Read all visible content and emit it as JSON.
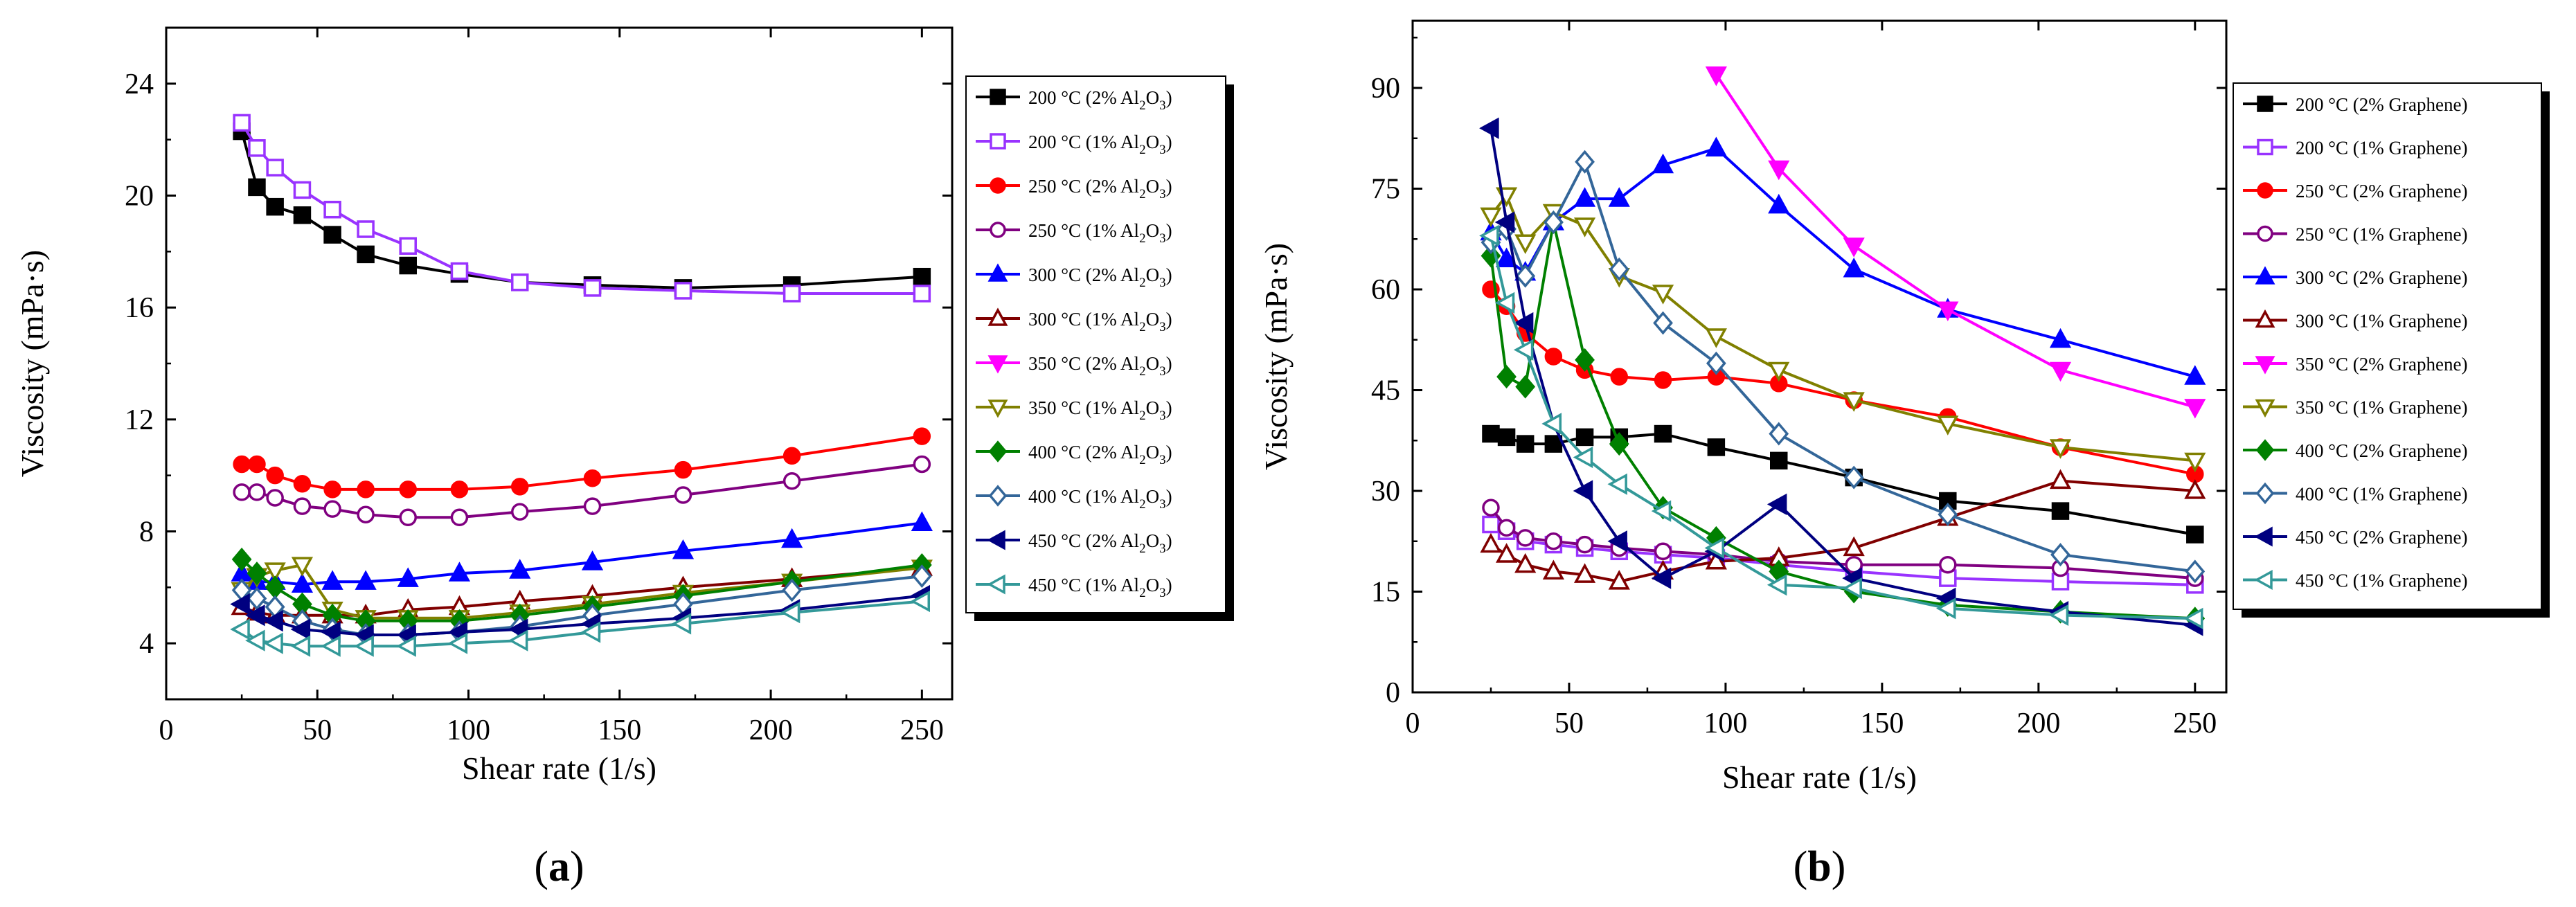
{
  "chart_data": [
    {
      "panel": "(a)",
      "panel_text": {
        "open": "(",
        "letter": "a",
        "close": ")"
      },
      "type": "line",
      "xlabel": "Shear rate (1/s)",
      "ylabel": "Viscosity (mPa·s)",
      "xlim": [
        0,
        260
      ],
      "ylim": [
        2,
        26
      ],
      "xticks": [
        0,
        50,
        100,
        150,
        200,
        250
      ],
      "yticks": [
        4,
        8,
        12,
        16,
        20,
        24
      ],
      "series": [
        {
          "name": "200 °C (2% Al2O3)",
          "label_main": "200 °C (2% Al",
          "label_sub": "2",
          "label_mid": "O",
          "label_sub2": "3",
          "label_end": ")",
          "color": "#000000",
          "marker": "square",
          "fill": true,
          "x": [
            25,
            30,
            36,
            45,
            55,
            66,
            80,
            97,
            117,
            141,
            171,
            207,
            250
          ],
          "y": [
            22.3,
            20.3,
            19.6,
            19.3,
            18.6,
            17.9,
            17.5,
            17.2,
            16.9,
            16.8,
            16.7,
            16.8,
            17.1
          ]
        },
        {
          "name": "200 °C (1% Al2O3)",
          "label_main": "200 °C (1% Al",
          "label_sub": "2",
          "label_mid": "O",
          "label_sub2": "3",
          "label_end": ")",
          "color": "#9933ff",
          "marker": "square",
          "fill": false,
          "x": [
            25,
            30,
            36,
            45,
            55,
            66,
            80,
            97,
            117,
            141,
            171,
            207,
            250
          ],
          "y": [
            22.6,
            21.7,
            21.0,
            20.2,
            19.5,
            18.8,
            18.2,
            17.3,
            16.9,
            16.7,
            16.6,
            16.5,
            16.5
          ]
        },
        {
          "name": "250 °C (2% Al2O3)",
          "label_main": "250 °C (2% Al",
          "label_sub": "2",
          "label_mid": "O",
          "label_sub2": "3",
          "label_end": ")",
          "color": "#ff0000",
          "marker": "circle",
          "fill": true,
          "x": [
            25,
            30,
            36,
            45,
            55,
            66,
            80,
            97,
            117,
            141,
            171,
            207,
            250
          ],
          "y": [
            10.4,
            10.4,
            10.0,
            9.7,
            9.5,
            9.5,
            9.5,
            9.5,
            9.6,
            9.9,
            10.2,
            10.7,
            11.4
          ]
        },
        {
          "name": "250 °C (1% Al2O3)",
          "label_main": "250 °C (1% Al",
          "label_sub": "2",
          "label_mid": "O",
          "label_sub2": "3",
          "label_end": ")",
          "color": "#800080",
          "marker": "circle",
          "fill": false,
          "x": [
            25,
            30,
            36,
            45,
            55,
            66,
            80,
            97,
            117,
            141,
            171,
            207,
            250
          ],
          "y": [
            9.4,
            9.4,
            9.2,
            8.9,
            8.8,
            8.6,
            8.5,
            8.5,
            8.7,
            8.9,
            9.3,
            9.8,
            10.4
          ]
        },
        {
          "name": "300 °C (2% Al2O3)",
          "label_main": "300 °C (2% Al",
          "label_sub": "2",
          "label_mid": "O",
          "label_sub2": "3",
          "label_end": ")",
          "color": "#0000ff",
          "marker": "triangle-up",
          "fill": true,
          "x": [
            25,
            30,
            36,
            45,
            55,
            66,
            80,
            97,
            117,
            141,
            171,
            207,
            250
          ],
          "y": [
            6.5,
            6.2,
            6.2,
            6.1,
            6.2,
            6.2,
            6.3,
            6.5,
            6.6,
            6.9,
            7.3,
            7.7,
            8.3
          ]
        },
        {
          "name": "300 °C (1% Al2O3)",
          "label_main": "300 °C (1% Al",
          "label_sub": "2",
          "label_mid": "O",
          "label_sub2": "3",
          "label_end": ")",
          "color": "#800000",
          "marker": "triangle-up",
          "fill": false,
          "x": [
            25,
            30,
            36,
            45,
            55,
            66,
            80,
            97,
            117,
            141,
            171,
            207,
            250
          ],
          "y": [
            5.3,
            5.1,
            5.0,
            5.0,
            5.0,
            5.0,
            5.2,
            5.3,
            5.5,
            5.7,
            6.0,
            6.3,
            6.7
          ]
        },
        {
          "name": "350 °C (2% Al2O3)",
          "label_main": "350 °C (2% Al",
          "label_sub": "2",
          "label_mid": "O",
          "label_sub2": "3",
          "label_end": ")",
          "color": "#ff00ff",
          "marker": "triangle-down",
          "fill": true,
          "x": [],
          "y": []
        },
        {
          "name": "350 °C (1% Al2O3)",
          "label_main": "350 °C (1% Al",
          "label_sub": "2",
          "label_mid": "O",
          "label_sub2": "3",
          "label_end": ")",
          "color": "#808000",
          "marker": "triangle-down",
          "fill": false,
          "x": [
            25,
            30,
            36,
            45,
            55,
            66,
            80,
            97,
            117,
            141,
            171,
            207,
            250
          ],
          "y": [
            5.9,
            6.4,
            6.6,
            6.8,
            5.2,
            4.9,
            4.9,
            4.9,
            5.1,
            5.4,
            5.8,
            6.2,
            6.7
          ]
        },
        {
          "name": "400 °C (2% Al2O3)",
          "label_main": "400 °C (2% Al",
          "label_sub": "2",
          "label_mid": "O",
          "label_sub2": "3",
          "label_end": ")",
          "color": "#008000",
          "marker": "diamond",
          "fill": true,
          "x": [
            25,
            30,
            36,
            45,
            55,
            66,
            80,
            97,
            117,
            141,
            171,
            207,
            250
          ],
          "y": [
            7.0,
            6.5,
            6.0,
            5.4,
            5.0,
            4.8,
            4.8,
            4.8,
            5.0,
            5.3,
            5.7,
            6.2,
            6.8
          ]
        },
        {
          "name": "400 °C (1% Al2O3)",
          "label_main": "400 °C (1% Al",
          "label_sub": "2",
          "label_mid": "O",
          "label_sub2": "3",
          "label_end": ")",
          "color": "#336699",
          "marker": "diamond",
          "fill": false,
          "x": [
            25,
            30,
            36,
            45,
            55,
            66,
            80,
            97,
            117,
            141,
            171,
            207,
            250
          ],
          "y": [
            5.9,
            5.6,
            5.3,
            4.8,
            4.5,
            4.3,
            4.3,
            4.4,
            4.6,
            5.0,
            5.4,
            5.9,
            6.4
          ]
        },
        {
          "name": "450 °C (2% Al2O3)",
          "label_main": "450 °C (2% Al",
          "label_sub": "2",
          "label_mid": "O",
          "label_sub2": "3",
          "label_end": ")",
          "color": "#000080",
          "marker": "triangle-left",
          "fill": true,
          "x": [
            25,
            30,
            36,
            45,
            55,
            66,
            80,
            97,
            117,
            141,
            171,
            207,
            250
          ],
          "y": [
            5.4,
            5.0,
            4.8,
            4.5,
            4.4,
            4.3,
            4.3,
            4.4,
            4.5,
            4.7,
            4.9,
            5.2,
            5.7
          ]
        },
        {
          "name": "450 °C (1% Al2O3)",
          "label_main": "450 °C (1% Al",
          "label_sub": "2",
          "label_mid": "O",
          "label_sub2": "3",
          "label_end": ")",
          "color": "#339999",
          "marker": "triangle-left",
          "fill": false,
          "x": [
            25,
            30,
            36,
            45,
            55,
            66,
            80,
            97,
            117,
            141,
            171,
            207,
            250
          ],
          "y": [
            4.5,
            4.1,
            4.0,
            3.9,
            3.9,
            3.9,
            3.9,
            4.0,
            4.1,
            4.4,
            4.7,
            5.1,
            5.5
          ]
        }
      ]
    },
    {
      "panel": "(b)",
      "panel_text": {
        "open": "(",
        "letter": "b",
        "close": ")"
      },
      "type": "line",
      "xlabel": "Shear rate (1/s)",
      "ylabel": "Viscosity (mPa·s)",
      "xlim": [
        0,
        260
      ],
      "ylim": [
        0,
        100
      ],
      "xticks": [
        0,
        50,
        100,
        150,
        200,
        250
      ],
      "yticks": [
        0,
        15,
        30,
        45,
        60,
        75,
        90
      ],
      "series": [
        {
          "name": "200 °C (2% Graphene)",
          "label_main": "200 °C (2% Graphene)",
          "color": "#000000",
          "marker": "square",
          "fill": true,
          "x": [
            25,
            30,
            36,
            45,
            55,
            66,
            80,
            97,
            117,
            141,
            171,
            207,
            250
          ],
          "y": [
            38.5,
            38,
            37,
            37,
            38,
            38,
            38.5,
            36.5,
            34.5,
            32,
            28.5,
            27,
            23.5
          ]
        },
        {
          "name": "200 °C (1% Graphene)",
          "label_main": "200 °C (1% Graphene)",
          "color": "#9933ff",
          "marker": "square",
          "fill": false,
          "x": [
            25,
            30,
            36,
            45,
            55,
            66,
            80,
            97,
            117,
            141,
            171,
            207,
            250
          ],
          "y": [
            25,
            24,
            22.5,
            22,
            21.5,
            21,
            20.5,
            20,
            19,
            18,
            17,
            16.5,
            16
          ]
        },
        {
          "name": "250 °C (2% Graphene)",
          "label_main": "250 °C (2% Graphene)",
          "color": "#ff0000",
          "marker": "circle",
          "fill": true,
          "x": [
            25,
            30,
            36,
            45,
            55,
            66,
            80,
            97,
            117,
            141,
            171,
            207,
            250
          ],
          "y": [
            60,
            57.5,
            53.5,
            50,
            48,
            47,
            46.5,
            47,
            46,
            43.5,
            41,
            36.5,
            32.5
          ]
        },
        {
          "name": "250 °C (1% Graphene)",
          "label_main": "250 °C (1% Graphene)",
          "color": "#800080",
          "marker": "circle",
          "fill": false,
          "x": [
            25,
            30,
            36,
            45,
            55,
            66,
            80,
            97,
            117,
            141,
            171,
            207,
            250
          ],
          "y": [
            27.5,
            24.5,
            23,
            22.5,
            22,
            21.5,
            21,
            20.5,
            19.5,
            19,
            19,
            18.5,
            17
          ]
        },
        {
          "name": "300 °C (2% Graphene)",
          "label_main": "300 °C (2% Graphene)",
          "color": "#0000ff",
          "marker": "triangle-up",
          "fill": true,
          "x": [
            25,
            30,
            36,
            45,
            55,
            66,
            80,
            97,
            117,
            141,
            171,
            207,
            250
          ],
          "y": [
            68.5,
            64.5,
            62.5,
            70,
            73.5,
            73.5,
            78.5,
            81,
            72.5,
            63,
            57,
            52.5,
            47
          ]
        },
        {
          "name": "300 °C (1% Graphene)",
          "label_main": "300 °C (1% Graphene)",
          "color": "#800000",
          "marker": "triangle-up",
          "fill": false,
          "x": [
            25,
            30,
            36,
            45,
            55,
            66,
            80,
            97,
            117,
            141,
            171,
            207,
            250
          ],
          "y": [
            22,
            20.5,
            19,
            18,
            17.5,
            16.5,
            18,
            19.5,
            20,
            21.5,
            26,
            31.5,
            30
          ]
        },
        {
          "name": "350 °C (2% Graphene)",
          "label_main": "350 °C (2% Graphene)",
          "color": "#ff00ff",
          "marker": "triangle-down",
          "fill": true,
          "x": [
            97,
            117,
            141,
            171,
            207,
            250
          ],
          "y": [
            92,
            78,
            66.5,
            57,
            48,
            42.5
          ]
        },
        {
          "name": "350 °C (1% Graphene)",
          "label_main": "350 °C (1% Graphene)",
          "color": "#808000",
          "marker": "triangle-down",
          "fill": false,
          "x": [
            25,
            30,
            36,
            45,
            55,
            66,
            80,
            97,
            117,
            141,
            171,
            207,
            250
          ],
          "y": [
            71,
            74,
            67,
            71.5,
            69.5,
            62,
            59.5,
            53,
            48,
            43.5,
            40,
            36.5,
            34.5
          ]
        },
        {
          "name": "400 °C (2% Graphene)",
          "label_main": "400 °C (2% Graphene)",
          "color": "#008000",
          "marker": "diamond",
          "fill": true,
          "x": [
            25,
            30,
            36,
            45,
            55,
            66,
            80,
            97,
            117,
            141,
            171,
            207,
            250
          ],
          "y": [
            65,
            47,
            45.5,
            70,
            49.5,
            37,
            27.5,
            23,
            18,
            15,
            13,
            12,
            11
          ]
        },
        {
          "name": "400 °C (1% Graphene)",
          "label_main": "400 °C (1% Graphene)",
          "color": "#336699",
          "marker": "diamond",
          "fill": false,
          "x": [
            25,
            30,
            36,
            45,
            55,
            66,
            80,
            97,
            117,
            141,
            171,
            207,
            250
          ],
          "y": [
            67,
            69,
            62,
            70,
            79,
            63,
            55,
            49,
            38.5,
            32,
            26.5,
            20.5,
            18
          ]
        },
        {
          "name": "450 °C (2% Graphene)",
          "label_main": "450 °C (2% Graphene)",
          "color": "#000080",
          "marker": "triangle-left",
          "fill": true,
          "x": [
            25,
            30,
            36,
            45,
            55,
            66,
            80,
            97,
            117,
            141,
            171,
            207,
            250
          ],
          "y": [
            84,
            70,
            55,
            40,
            30,
            22.5,
            17,
            21,
            28,
            17,
            14,
            12,
            10
          ]
        },
        {
          "name": "450 °C (1% Graphene)",
          "label_main": "450 °C (1% Graphene)",
          "color": "#339999",
          "marker": "triangle-left",
          "fill": false,
          "x": [
            25,
            30,
            36,
            45,
            55,
            66,
            80,
            97,
            117,
            141,
            171,
            207,
            250
          ],
          "y": [
            68,
            58,
            51,
            40,
            35,
            31,
            27,
            21.5,
            16,
            15.5,
            12.5,
            11.5,
            11
          ]
        }
      ]
    }
  ]
}
